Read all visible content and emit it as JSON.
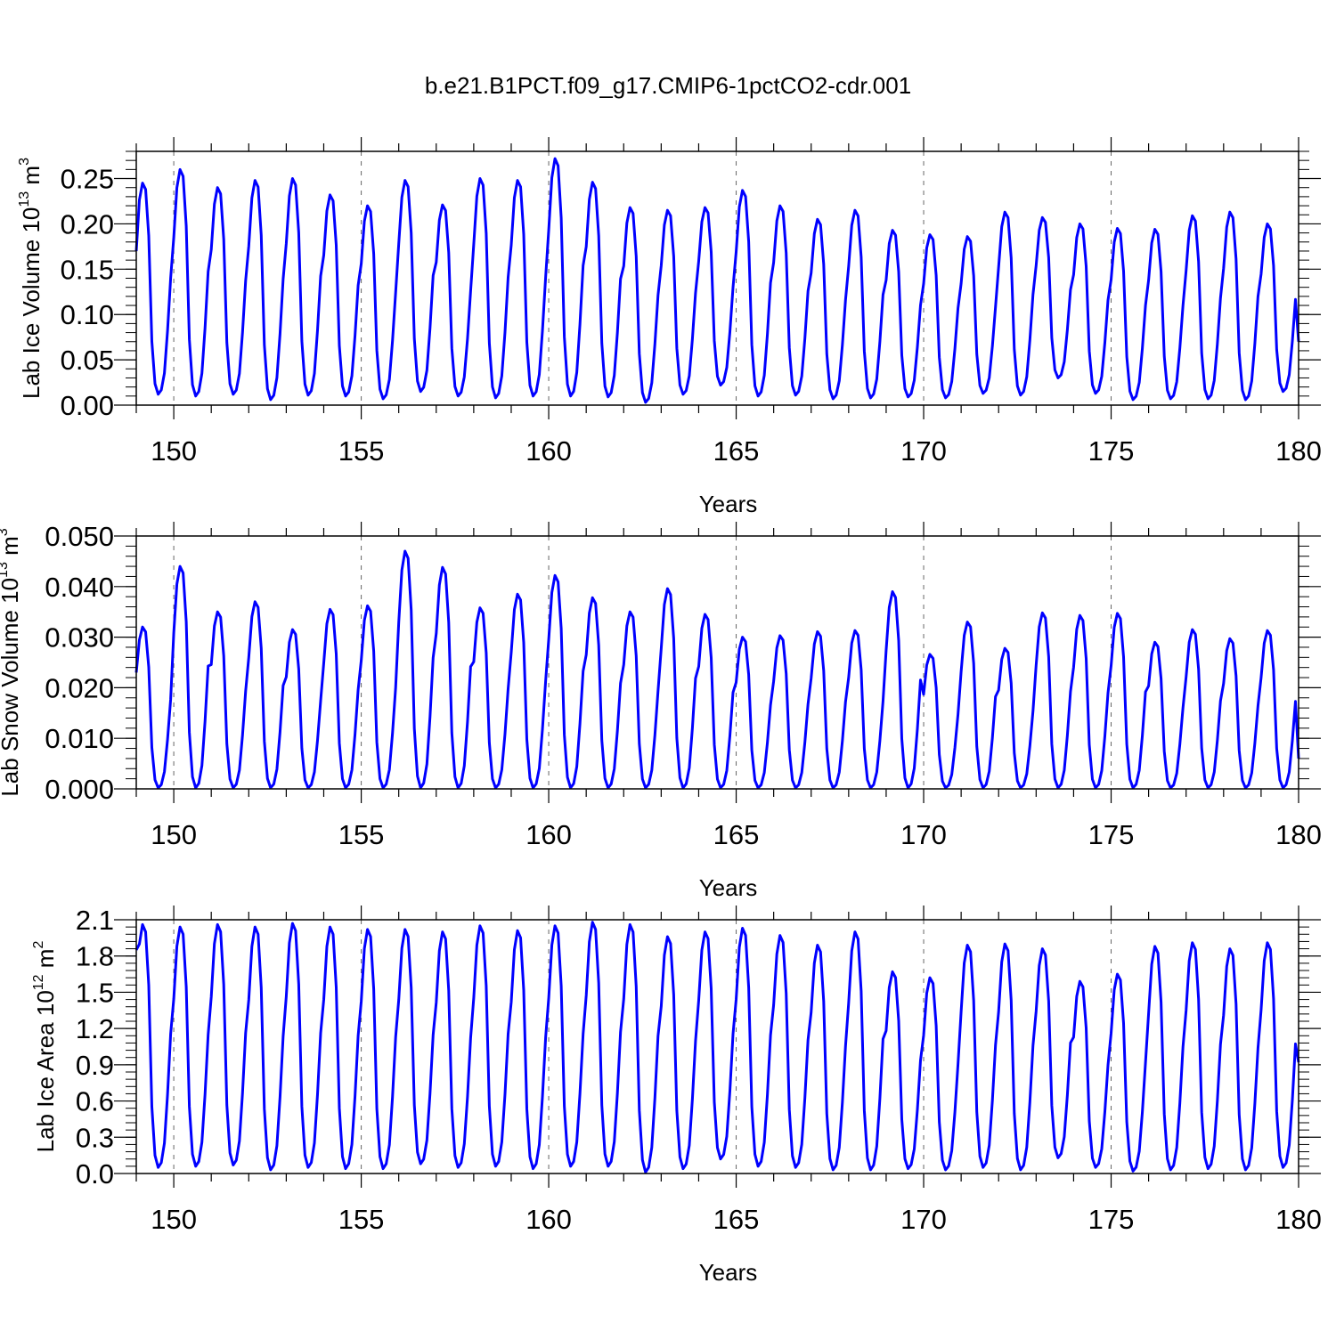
{
  "figure_title": "b.e21.B1PCT.f09_g17.CMIP6-1pctCO2-cdr.001",
  "colors": {
    "line": "#0000ff",
    "axis": "#000000",
    "grid": "#666666"
  },
  "chart_data": [
    {
      "type": "line",
      "name": "panel-ice-volume",
      "xlabel": "Years",
      "ylabel": {
        "text": "Lab Ice Volume 10",
        "exp": "13",
        "unit": " m",
        "unit_exp": "3"
      },
      "xlim": [
        149,
        180
      ],
      "ylim": [
        0,
        0.28
      ],
      "xticks": [
        150,
        155,
        160,
        165,
        170,
        175,
        180
      ],
      "xtick_labels": [
        "150",
        "155",
        "160",
        "165",
        "170",
        "175",
        "180"
      ],
      "yticks": [
        0,
        0.05,
        0.1,
        0.15,
        0.2,
        0.25
      ],
      "ytick_labels": [
        "0.00",
        "0.05",
        "0.10",
        "0.15",
        "0.20",
        "0.25"
      ],
      "vertical_grid": true,
      "start_value": 0.17,
      "end_value": 0.07,
      "annual_max": [
        0.245,
        0.26,
        0.24,
        0.248,
        0.25,
        0.232,
        0.22,
        0.248,
        0.221,
        0.25,
        0.248,
        0.272,
        0.246,
        0.218,
        0.215,
        0.218,
        0.237,
        0.22,
        0.205,
        0.215,
        0.193,
        0.188,
        0.186,
        0.213,
        0.207,
        0.2,
        0.195,
        0.194,
        0.209,
        0.213,
        0.2
      ],
      "annual_min": [
        0.012,
        0.01,
        0.012,
        0.006,
        0.011,
        0.01,
        0.007,
        0.015,
        0.01,
        0.008,
        0.01,
        0.01,
        0.009,
        0.003,
        0.012,
        0.022,
        0.01,
        0.011,
        0.007,
        0.008,
        0.009,
        0.008,
        0.013,
        0.011,
        0.03,
        0.013,
        0.006,
        0.007,
        0.007,
        0.006,
        0.015
      ]
    },
    {
      "type": "line",
      "name": "panel-snow-volume",
      "xlabel": "Years",
      "ylabel": {
        "text": "Lab Snow Volume 10",
        "exp": "13",
        "unit": " m",
        "unit_exp": "3"
      },
      "xlim": [
        149,
        180
      ],
      "ylim": [
        0,
        0.05
      ],
      "xticks": [
        150,
        155,
        160,
        165,
        170,
        175,
        180
      ],
      "xtick_labels": [
        "150",
        "155",
        "160",
        "165",
        "170",
        "175",
        "180"
      ],
      "yticks": [
        0,
        0.01,
        0.02,
        0.03,
        0.04,
        0.05
      ],
      "ytick_labels": [
        "0.000",
        "0.010",
        "0.020",
        "0.030",
        "0.040",
        "0.050"
      ],
      "vertical_grid": true,
      "start_value": 0.023,
      "end_value": 0.006,
      "annual_max": [
        0.032,
        0.044,
        0.035,
        0.037,
        0.0315,
        0.0355,
        0.0362,
        0.047,
        0.0438,
        0.0358,
        0.0385,
        0.0422,
        0.0378,
        0.035,
        0.0396,
        0.0345,
        0.03,
        0.0303,
        0.0311,
        0.0313,
        0.039,
        0.0266,
        0.033,
        0.0278,
        0.0348,
        0.0343,
        0.0347,
        0.029,
        0.0315,
        0.0297,
        0.0313
      ],
      "annual_min": [
        0.0002,
        0.0002,
        0.0002,
        0.0002,
        0.0002,
        0.0002,
        0.0002,
        0.0002,
        0.0002,
        0.0002,
        0.0002,
        0.0002,
        0.0002,
        0.0002,
        0.0002,
        0.0002,
        0.0002,
        0.0002,
        0.0002,
        0.0002,
        0.0002,
        0.0002,
        0.0002,
        0.0002,
        0.0002,
        0.0002,
        0.0002,
        0.0002,
        0.0002,
        0.0002,
        0.0002
      ]
    },
    {
      "type": "line",
      "name": "panel-ice-area",
      "xlabel": "Years",
      "ylabel": {
        "text": "Lab Ice Area 10",
        "exp": "12",
        "unit": " m",
        "unit_exp": "2"
      },
      "xlim": [
        149,
        180
      ],
      "ylim": [
        0,
        2.1
      ],
      "xticks": [
        150,
        155,
        160,
        165,
        170,
        175,
        180
      ],
      "xtick_labels": [
        "150",
        "155",
        "160",
        "165",
        "170",
        "175",
        "180"
      ],
      "yticks": [
        0,
        0.3,
        0.6,
        0.9,
        1.2,
        1.5,
        1.8,
        2.1
      ],
      "ytick_labels": [
        "0.0",
        "0.3",
        "0.6",
        "0.9",
        "1.2",
        "1.5",
        "1.8",
        "2.1"
      ],
      "vertical_grid": true,
      "start_value": 1.85,
      "end_value": 0.92,
      "annual_max": [
        2.06,
        2.04,
        2.06,
        2.04,
        2.07,
        2.04,
        2.02,
        2.02,
        2.0,
        2.05,
        2.01,
        2.05,
        2.08,
        2.06,
        1.96,
        2.0,
        2.03,
        1.97,
        1.89,
        2.0,
        1.67,
        1.62,
        1.89,
        1.9,
        1.86,
        1.59,
        1.65,
        1.88,
        1.91,
        1.86,
        1.91
      ],
      "annual_min": [
        0.05,
        0.06,
        0.07,
        0.03,
        0.05,
        0.04,
        0.04,
        0.08,
        0.05,
        0.06,
        0.04,
        0.06,
        0.06,
        0.01,
        0.04,
        0.12,
        0.06,
        0.05,
        0.03,
        0.03,
        0.04,
        0.03,
        0.05,
        0.03,
        0.13,
        0.05,
        0.02,
        0.03,
        0.04,
        0.03,
        0.05
      ]
    }
  ]
}
